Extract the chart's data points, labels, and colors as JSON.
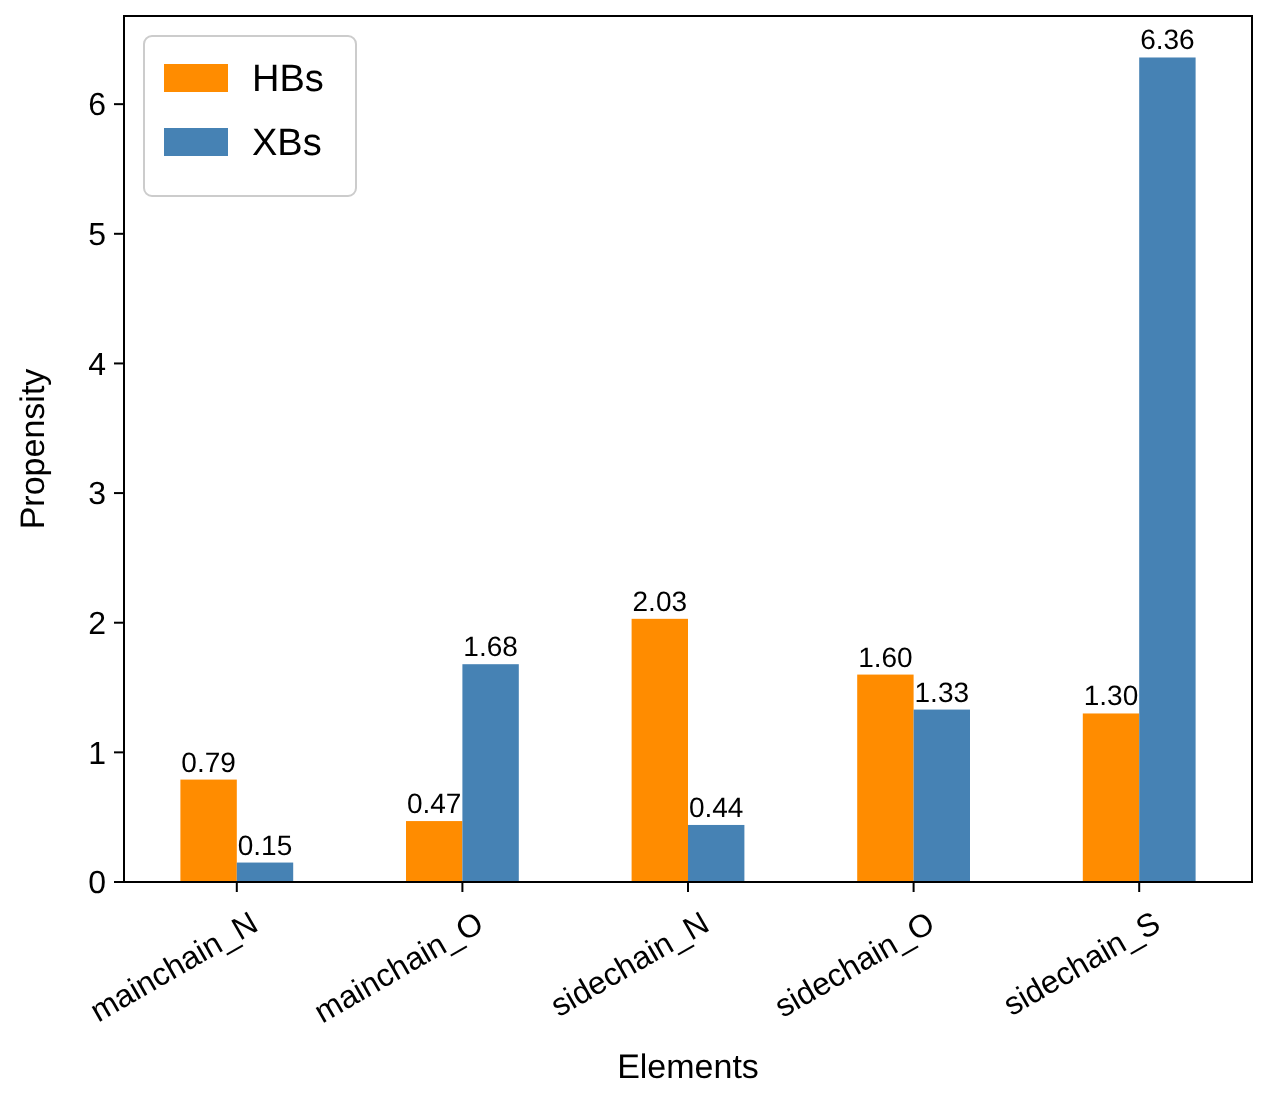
{
  "chart_data": {
    "type": "bar",
    "xlabel": "Elements",
    "ylabel": "Propensity",
    "categories": [
      "mainchain_N",
      "mainchain_O",
      "sidechain_N",
      "sidechain_O",
      "sidechain_S"
    ],
    "series": [
      {
        "name": "HBs",
        "color": "#ff8c00",
        "values": [
          0.79,
          0.47,
          2.03,
          1.6,
          1.3
        ],
        "value_labels": [
          "0.79",
          "0.47",
          "2.03",
          "1.60",
          "1.30"
        ]
      },
      {
        "name": "XBs",
        "color": "#4682b4",
        "values": [
          0.15,
          1.68,
          0.44,
          1.33,
          6.36
        ],
        "value_labels": [
          "0.15",
          "1.68",
          "0.44",
          "1.33",
          "6.36"
        ]
      }
    ],
    "ylim": [
      0,
      6.68
    ],
    "yticks": [
      0,
      1,
      2,
      3,
      4,
      5,
      6
    ],
    "grid": false,
    "legend": "top left"
  }
}
